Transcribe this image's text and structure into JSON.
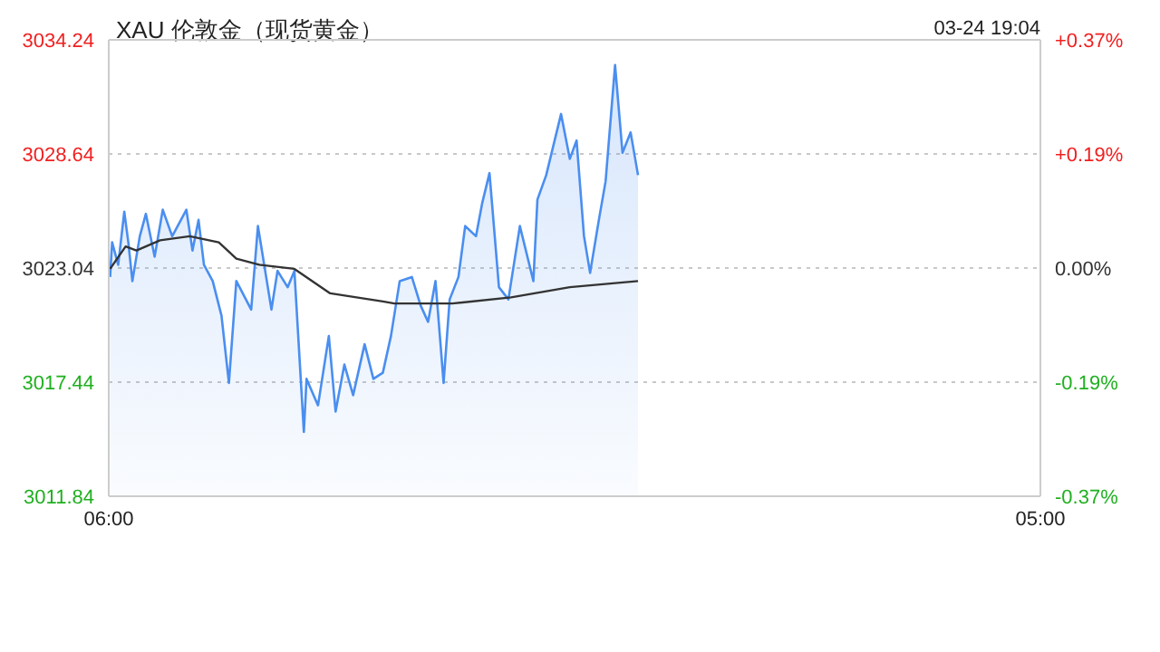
{
  "chart_data": {
    "type": "area",
    "title": "XAU 伦敦金（现货黄金）",
    "annotations": [
      "03-24 19:04"
    ],
    "series": [
      {
        "color": "#4a8ef0",
        "x": [
          "--03-24T06:02",
          "--03-24T06:05",
          "--03-24T06:14",
          "--03-24T06:23",
          "--03-24T06:29",
          "--03-24T06:35",
          "--03-24T06:46",
          "--03-24T06:55",
          "--03-24T07:08",
          "--03-24T07:20",
          "--03-24T07:34",
          "--03-24T07:55",
          "--03-24T08:04",
          "--03-24T08:13",
          "--03-24T08:21",
          "--03-24T08:34",
          "--03-24T08:47",
          "--03-24T08:58",
          "--03-24T09:09",
          "--03-24T09:31",
          "--03-24T09:41",
          "--03-24T10:01",
          "--03-24T10:10",
          "--03-24T10:25",
          "--03-24T10:35",
          "--03-24T10:49",
          "--03-24T10:53",
          "--03-24T11:10",
          "--03-24T11:26",
          "--03-24T11:36",
          "--03-24T11:49",
          "--03-24T12:02",
          "--03-24T12:19",
          "--03-24T12:32",
          "--03-24T12:46",
          "--03-24T12:58",
          "--03-24T13:11",
          "--03-24T13:29",
          "--03-24T13:42",
          "--03-24T13:53",
          "--03-24T14:04",
          "--03-24T14:16",
          "--03-24T14:25",
          "--03-24T14:38",
          "--03-24T14:48",
          "--03-24T15:04",
          "--03-24T15:13",
          "--03-24T15:24",
          "--03-24T15:38",
          "--03-24T15:52",
          "--03-24T16:09",
          "--03-24T16:29",
          "--03-24T16:35",
          "--03-24T16:48",
          "--03-24T17:10",
          "--03-24T17:23",
          "--03-24T17:33",
          "--03-24T17:44",
          "--03-24T17:53",
          "--03-24T18:06",
          "--03-24T18:16",
          "--03-24T18:30",
          "--03-24T18:41",
          "--03-24T18:53",
          "--03-24T19:04"
        ],
        "values": [
          3022.6,
          3024.3,
          3023.2,
          3025.8,
          3024.3,
          3022.4,
          3024.6,
          3025.7,
          3023.6,
          3025.9,
          3024.6,
          3025.9,
          3023.9,
          3025.4,
          3023.2,
          3022.4,
          3020.7,
          3017.4,
          3022.4,
          3021.0,
          3025.1,
          3021.0,
          3022.9,
          3022.1,
          3022.9,
          3015.0,
          3017.6,
          3016.3,
          3019.7,
          3016.0,
          3018.3,
          3016.8,
          3019.3,
          3017.6,
          3017.9,
          3019.7,
          3022.4,
          3022.6,
          3021.2,
          3020.4,
          3022.4,
          3017.4,
          3021.5,
          3022.6,
          3025.1,
          3024.6,
          3026.2,
          3027.7,
          3022.1,
          3021.5,
          3025.1,
          3022.4,
          3026.4,
          3027.6,
          3030.6,
          3028.4,
          3029.3,
          3024.6,
          3022.8,
          3025.4,
          3027.3,
          3033.0,
          3028.7,
          3029.7,
          3027.6
        ]
      },
      {
        "type": "line",
        "color": "#333333",
        "x": [
          "--03-24T06:02",
          "--03-24T06:25",
          "--03-24T06:41",
          "--03-24T07:16",
          "--03-24T08:00",
          "--03-24T08:43",
          "--03-24T09:09",
          "--03-24T09:43",
          "--03-24T10:35",
          "--03-24T11:28",
          "--03-24T12:46",
          "--03-24T13:03",
          "--03-24T14:29",
          "--03-24T15:56",
          "--03-24T17:23",
          "--03-24T19:04"
        ],
        "values": [
          3023.0,
          3024.1,
          3023.9,
          3024.4,
          3024.6,
          3024.3,
          3023.5,
          3023.2,
          3023.0,
          3021.8,
          3021.4,
          3021.3,
          3021.3,
          3021.6,
          3022.1,
          3022.4
        ]
      }
    ],
    "xlim": [
      "--03-24T06:00",
      "--03-25T05:00"
    ],
    "xticks": [
      {
        "value": "--03-24T06:00",
        "label": "06:00"
      },
      {
        "value": "--03-25T05:00",
        "label": "05:00"
      }
    ],
    "ylim": [
      3011.84,
      3034.24
    ],
    "yticks": [
      3011.84,
      3017.44,
      3023.04,
      3028.64,
      3034.24
    ],
    "y2lim": [
      -0.37,
      0.37
    ],
    "y2ticks": [
      {
        "value": -0.37,
        "label": "-0.37%"
      },
      {
        "value": -0.185,
        "label": "-0.19%"
      },
      {
        "value": 0,
        "label": "0.00%"
      },
      {
        "value": 0.185,
        "label": "+0.19%"
      },
      {
        "value": 0.37,
        "label": "+0.37%"
      }
    ],
    "grid": "y",
    "legend": false,
    "marker": "none",
    "line_style": "solid"
  }
}
